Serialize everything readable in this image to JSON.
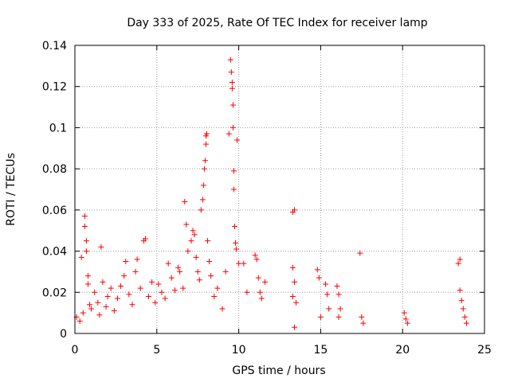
{
  "chart_data": {
    "type": "scatter",
    "title": "Day 333 of 2025, Rate Of TEC Index for receiver lamp",
    "xlabel": "GPS time / hours",
    "ylabel": "ROTI / TECUs",
    "xlim": [
      0,
      25
    ],
    "ylim": [
      0,
      0.14
    ],
    "xticks": [
      0,
      5,
      10,
      15,
      20,
      25
    ],
    "xtick_labels": [
      "0",
      "5",
      "10",
      "15",
      "20",
      "25"
    ],
    "yticks": [
      0,
      0.02,
      0.04,
      0.06,
      0.08,
      0.1,
      0.12,
      0.14
    ],
    "ytick_labels": [
      "0",
      "0.02",
      "0.04",
      "0.06",
      "0.08",
      "0.1",
      "0.12",
      "0.14"
    ],
    "grid": true,
    "legend": "none",
    "marker": "plus",
    "color": "#ff0000",
    "series": [
      {
        "points": [
          [
            0.1,
            0.008
          ],
          [
            0.3,
            0.006
          ],
          [
            0.5,
            0.01
          ],
          [
            0.6,
            0.052
          ],
          [
            0.6,
            0.057
          ],
          [
            0.7,
            0.045
          ],
          [
            0.7,
            0.04
          ],
          [
            0.8,
            0.028
          ],
          [
            0.8,
            0.024
          ],
          [
            0.9,
            0.014
          ],
          [
            1.0,
            0.012
          ],
          [
            1.2,
            0.02
          ],
          [
            1.4,
            0.015
          ],
          [
            1.5,
            0.009
          ],
          [
            1.6,
            0.042
          ],
          [
            1.7,
            0.025
          ],
          [
            1.9,
            0.013
          ],
          [
            2.0,
            0.018
          ],
          [
            2.2,
            0.022
          ],
          [
            2.4,
            0.011
          ],
          [
            2.6,
            0.017
          ],
          [
            2.8,
            0.023
          ],
          [
            3.0,
            0.028
          ],
          [
            3.1,
            0.035
          ],
          [
            3.3,
            0.019
          ],
          [
            3.5,
            0.014
          ],
          [
            3.7,
            0.03
          ],
          [
            3.8,
            0.036
          ],
          [
            4.0,
            0.022
          ],
          [
            4.2,
            0.045
          ],
          [
            4.3,
            0.046
          ],
          [
            4.5,
            0.018
          ],
          [
            4.7,
            0.025
          ],
          [
            4.9,
            0.015
          ],
          [
            5.1,
            0.024
          ],
          [
            5.3,
            0.02
          ],
          [
            5.5,
            0.017
          ],
          [
            5.7,
            0.034
          ],
          [
            5.9,
            0.027
          ],
          [
            6.1,
            0.021
          ],
          [
            6.3,
            0.032
          ],
          [
            6.4,
            0.03
          ],
          [
            6.6,
            0.022
          ],
          [
            6.7,
            0.064
          ],
          [
            6.8,
            0.053
          ],
          [
            6.9,
            0.04
          ],
          [
            7.1,
            0.045
          ],
          [
            7.2,
            0.05
          ],
          [
            7.3,
            0.048
          ],
          [
            7.4,
            0.037
          ],
          [
            7.5,
            0.03
          ],
          [
            7.6,
            0.026
          ],
          [
            7.7,
            0.06
          ],
          [
            7.8,
            0.065
          ],
          [
            7.85,
            0.072
          ],
          [
            7.9,
            0.08
          ],
          [
            7.95,
            0.084
          ],
          [
            8.0,
            0.092
          ],
          [
            8.0,
            0.096
          ],
          [
            8.05,
            0.097
          ],
          [
            8.1,
            0.045
          ],
          [
            8.2,
            0.035
          ],
          [
            8.3,
            0.028
          ],
          [
            8.5,
            0.018
          ],
          [
            8.7,
            0.022
          ],
          [
            9.0,
            0.012
          ],
          [
            9.2,
            0.03
          ],
          [
            9.4,
            0.097
          ],
          [
            9.5,
            0.133
          ],
          [
            9.55,
            0.127
          ],
          [
            9.6,
            0.122
          ],
          [
            9.6,
            0.119
          ],
          [
            9.65,
            0.111
          ],
          [
            9.65,
            0.1
          ],
          [
            9.7,
            0.079
          ],
          [
            9.7,
            0.07
          ],
          [
            9.75,
            0.052
          ],
          [
            9.8,
            0.044
          ],
          [
            9.85,
            0.041
          ],
          [
            9.9,
            0.094
          ],
          [
            10.0,
            0.034
          ],
          [
            10.3,
            0.034
          ],
          [
            10.5,
            0.02
          ],
          [
            11.0,
            0.038
          ],
          [
            11.1,
            0.036
          ],
          [
            11.2,
            0.027
          ],
          [
            11.3,
            0.02
          ],
          [
            11.4,
            0.017
          ],
          [
            11.6,
            0.025
          ],
          [
            13.3,
            0.059
          ],
          [
            13.4,
            0.06
          ],
          [
            13.3,
            0.032
          ],
          [
            13.4,
            0.025
          ],
          [
            13.3,
            0.018
          ],
          [
            13.5,
            0.015
          ],
          [
            13.4,
            0.003
          ],
          [
            14.8,
            0.031
          ],
          [
            14.9,
            0.027
          ],
          [
            15.0,
            0.008
          ],
          [
            15.3,
            0.024
          ],
          [
            15.4,
            0.019
          ],
          [
            15.5,
            0.012
          ],
          [
            16.0,
            0.023
          ],
          [
            16.1,
            0.019
          ],
          [
            16.2,
            0.012
          ],
          [
            16.1,
            0.008
          ],
          [
            17.4,
            0.039
          ],
          [
            17.5,
            0.008
          ],
          [
            17.6,
            0.005
          ],
          [
            20.1,
            0.01
          ],
          [
            20.2,
            0.007
          ],
          [
            20.3,
            0.005
          ],
          [
            23.4,
            0.034
          ],
          [
            23.5,
            0.036
          ],
          [
            23.5,
            0.021
          ],
          [
            23.6,
            0.016
          ],
          [
            23.7,
            0.012
          ],
          [
            23.8,
            0.008
          ],
          [
            23.9,
            0.005
          ],
          [
            0.4,
            0.037
          ]
        ]
      }
    ]
  }
}
